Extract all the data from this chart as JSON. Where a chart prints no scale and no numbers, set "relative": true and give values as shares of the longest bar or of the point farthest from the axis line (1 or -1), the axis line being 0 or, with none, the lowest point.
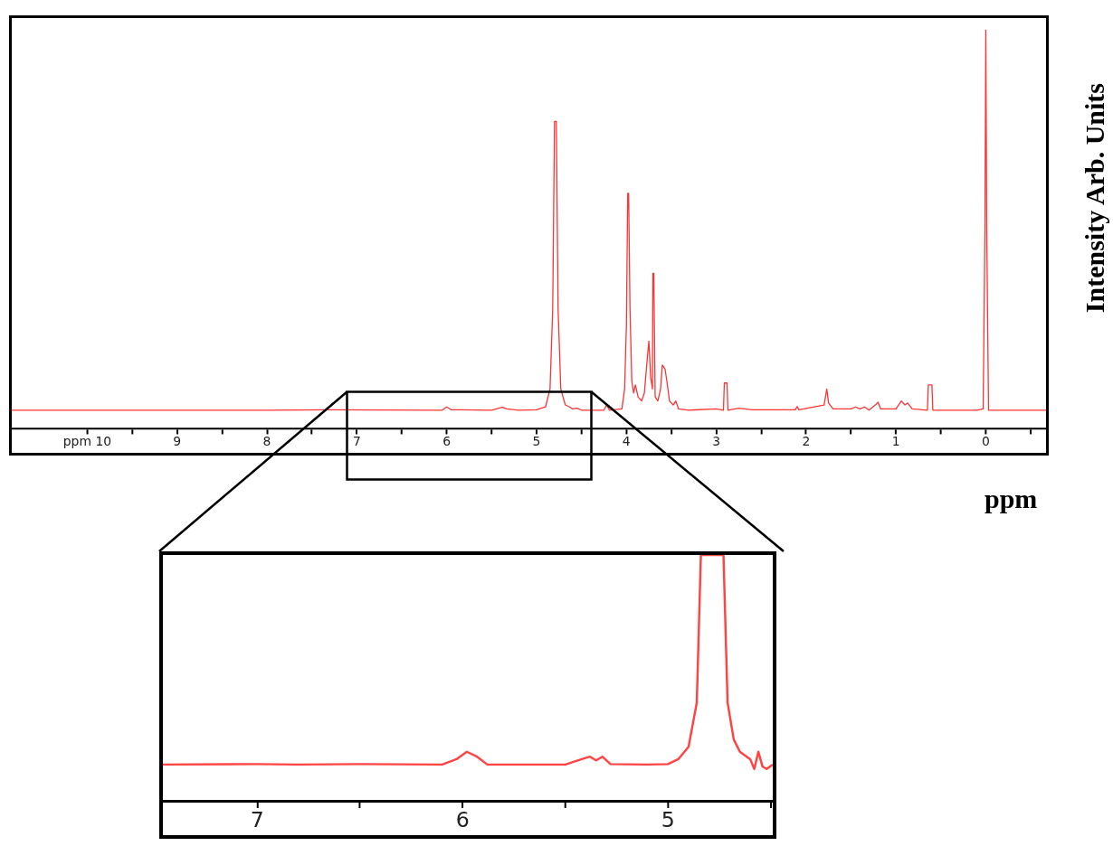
{
  "chart_data": [
    {
      "type": "line",
      "xlabel": "ppm",
      "ylabel": "Intensity Arb. Units",
      "relative": true,
      "tick_labels": "x",
      "color": "#ff3333",
      "marker": "none",
      "xlim": [
        10.84,
        -0.67
      ],
      "xticks": [
        {
          "value": 10,
          "label": "ppm 10"
        },
        {
          "value": 9.5,
          "label": null
        },
        9,
        {
          "value": 8.5,
          "label": null
        },
        8,
        {
          "value": 7.5,
          "label": null
        },
        7,
        {
          "value": 6.5,
          "label": null
        },
        6,
        {
          "value": 5.5,
          "label": null
        },
        5,
        {
          "value": 4.5,
          "label": null
        },
        4,
        {
          "value": 3.5,
          "label": null
        },
        3,
        {
          "value": 2.5,
          "label": null
        },
        2,
        {
          "value": 1.5,
          "label": null
        },
        1,
        {
          "value": 0.5,
          "label": null
        },
        0,
        {
          "value": -0.5,
          "label": null
        }
      ],
      "x": [
        10.84,
        10,
        9,
        8,
        7.3,
        6.05,
        6.0,
        5.95,
        5.5,
        5.42,
        5.38,
        5.33,
        5.2,
        5.0,
        4.9,
        4.85,
        4.82,
        4.8,
        4.78,
        4.76,
        4.73,
        4.68,
        4.63,
        4.6,
        4.55,
        4.5,
        4.25,
        4.22,
        4.19,
        4.05,
        4.02,
        4.0,
        3.985,
        3.975,
        3.96,
        3.94,
        3.92,
        3.9,
        3.87,
        3.83,
        3.8,
        3.77,
        3.75,
        3.73,
        3.71,
        3.705,
        3.695,
        3.68,
        3.65,
        3.62,
        3.6,
        3.57,
        3.55,
        3.52,
        3.48,
        3.45,
        3.42,
        3.3,
        3.0,
        2.92,
        2.91,
        2.88,
        2.87,
        2.75,
        2.6,
        2.12,
        2.1,
        2.08,
        1.8,
        1.77,
        1.75,
        1.7,
        1.5,
        1.45,
        1.4,
        1.35,
        1.3,
        1.22,
        1.2,
        1.17,
        1.0,
        0.94,
        0.9,
        0.87,
        0.82,
        0.65,
        0.64,
        0.6,
        0.59,
        0.1,
        0.03,
        0.01,
        0.0,
        -0.01,
        -0.03,
        -0.2,
        -0.67
      ],
      "values": [
        0.047,
        0.047,
        0.047,
        0.047,
        0.048,
        0.047,
        0.055,
        0.048,
        0.047,
        0.052,
        0.054,
        0.05,
        0.047,
        0.048,
        0.055,
        0.1,
        0.3,
        0.77,
        0.77,
        0.3,
        0.1,
        0.06,
        0.055,
        0.05,
        0.052,
        0.047,
        0.047,
        0.06,
        0.047,
        0.05,
        0.1,
        0.26,
        0.59,
        0.59,
        0.3,
        0.12,
        0.09,
        0.11,
        0.08,
        0.07,
        0.09,
        0.17,
        0.22,
        0.13,
        0.1,
        0.39,
        0.39,
        0.08,
        0.07,
        0.1,
        0.16,
        0.15,
        0.12,
        0.07,
        0.06,
        0.07,
        0.05,
        0.047,
        0.05,
        0.047,
        0.115,
        0.115,
        0.047,
        0.052,
        0.048,
        0.048,
        0.056,
        0.048,
        0.06,
        0.1,
        0.065,
        0.05,
        0.05,
        0.055,
        0.05,
        0.055,
        0.047,
        0.062,
        0.067,
        0.05,
        0.05,
        0.07,
        0.06,
        0.065,
        0.05,
        0.047,
        0.11,
        0.11,
        0.047,
        0.047,
        0.05,
        0.5,
        1,
        0.5,
        0.047,
        0.047,
        0.047
      ]
    },
    {
      "type": "line",
      "relative": true,
      "tick_labels": "x",
      "color": "#ff4444",
      "marker": "none",
      "xlim": [
        7.46,
        4.49
      ],
      "xticks": [
        7,
        {
          "value": 6.5,
          "label": null
        },
        6,
        {
          "value": 5.5,
          "label": null
        },
        5,
        {
          "value": 4.5,
          "label": null
        }
      ],
      "x": [
        7.46,
        7.0,
        6.8,
        6.5,
        6.1,
        6.03,
        5.98,
        5.93,
        5.88,
        5.5,
        5.42,
        5.38,
        5.35,
        5.32,
        5.28,
        5.1,
        5.0,
        4.95,
        4.9,
        4.86,
        4.84,
        4.73,
        4.71,
        4.68,
        4.65,
        4.6,
        4.58,
        4.56,
        4.54,
        4.52,
        4.49
      ],
      "values": [
        0.148,
        0.15,
        0.148,
        0.15,
        0.148,
        0.17,
        0.2,
        0.18,
        0.148,
        0.148,
        0.17,
        0.18,
        0.165,
        0.18,
        0.15,
        0.148,
        0.15,
        0.17,
        0.22,
        0.4,
        1,
        1,
        0.4,
        0.25,
        0.2,
        0.17,
        0.13,
        0.2,
        0.14,
        0.13,
        0.148
      ]
    }
  ]
}
